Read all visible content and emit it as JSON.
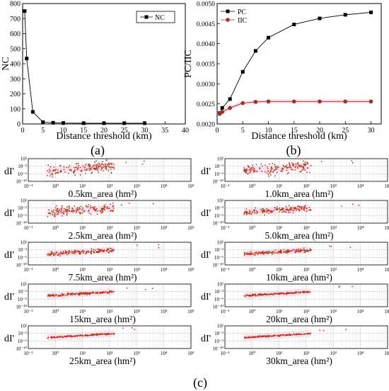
{
  "chart_data": [
    {
      "type": "line",
      "panel_label": "(a)",
      "xlabel": "Distance threshold (km)",
      "ylabel": "NC",
      "xlim": [
        0,
        40
      ],
      "ylim": [
        0,
        800
      ],
      "xticks": [
        0,
        5,
        10,
        15,
        20,
        25,
        30,
        35,
        40
      ],
      "yticks": [
        0,
        100,
        200,
        300,
        400,
        500,
        600,
        700,
        800
      ],
      "legend_position": "top-right",
      "series": [
        {
          "name": "NC",
          "color": "#000000",
          "marker": "square",
          "x": [
            0.5,
            1,
            2.5,
            5,
            7.5,
            10,
            15,
            20,
            25,
            30
          ],
          "y": [
            750,
            435,
            80,
            12,
            8,
            6,
            5,
            5,
            5,
            5
          ]
        }
      ]
    },
    {
      "type": "line",
      "panel_label": "(b)",
      "xlabel": "Distance threshold (km)",
      "ylabel": "PC/IIC",
      "xlim": [
        0,
        32
      ],
      "ylim": [
        0.002,
        0.005
      ],
      "xticks": [
        0,
        5,
        10,
        15,
        20,
        25,
        30
      ],
      "yticks": [
        0.002,
        0.0025,
        0.003,
        0.0035,
        0.004,
        0.0045,
        0.005
      ],
      "ytick_labels": [
        "0.0020",
        "0.0025",
        "0.0030",
        "0.0035",
        "0.0040",
        "0.0045",
        "0.0050"
      ],
      "legend_position": "top-left",
      "series": [
        {
          "name": "PC",
          "color": "#000000",
          "marker": "square",
          "x": [
            0.5,
            1,
            2.5,
            5,
            7.5,
            10,
            15,
            20,
            25,
            30
          ],
          "y": [
            0.00227,
            0.0024,
            0.00262,
            0.0033,
            0.00382,
            0.00415,
            0.00448,
            0.00463,
            0.00472,
            0.00478
          ]
        },
        {
          "name": "IIC",
          "color": "#a0301c",
          "marker": "circle",
          "x": [
            0.5,
            1,
            2.5,
            5,
            7.5,
            10,
            15,
            20,
            25,
            30
          ],
          "y": [
            0.00225,
            0.0023,
            0.0024,
            0.00252,
            0.00255,
            0.00256,
            0.00256,
            0.00256,
            0.00256,
            0.00256
          ]
        }
      ]
    },
    {
      "type": "scatter",
      "panel_label": "(c)",
      "x_scale": "log",
      "y_scale": "log",
      "xlim": [
        0.1,
        100000
      ],
      "ylim": [
        1e-10,
        100
      ],
      "xticks": [
        0.1,
        1,
        10,
        100,
        1000,
        10000,
        100000
      ],
      "xtick_labels": [
        "10⁻¹",
        "10⁰",
        "10¹",
        "10²",
        "10³",
        "10⁴",
        "10⁵"
      ],
      "yticks": [
        100,
        0.01,
        1e-06,
        1e-10
      ],
      "ytick_labels": [
        "10²",
        "10⁻²",
        "10⁻⁶",
        "10⁻¹⁰"
      ],
      "ylabel": "dI'",
      "marker_colors": [
        "#d42a1e",
        "#6b5a14"
      ],
      "panels": [
        {
          "xlabel": "0.5km_area (hm²)",
          "spread": 1.4
        },
        {
          "xlabel": "1.0km_area (hm²)",
          "spread": 1.5
        },
        {
          "xlabel": "2.5km_area (hm²)",
          "spread": 1.2
        },
        {
          "xlabel": "5.0km_area (hm²)",
          "spread": 0.8
        },
        {
          "xlabel": "7.5km_area (hm²)",
          "spread": 0.55
        },
        {
          "xlabel": "10km_area (hm²)",
          "spread": 0.45
        },
        {
          "xlabel": "15km_area (hm²)",
          "spread": 0.3
        },
        {
          "xlabel": "20km_area (hm²)",
          "spread": 0.25
        },
        {
          "xlabel": "25km_area (hm²)",
          "spread": 0.2
        },
        {
          "xlabel": "30km_area (hm²)",
          "spread": 0.18
        }
      ]
    }
  ]
}
